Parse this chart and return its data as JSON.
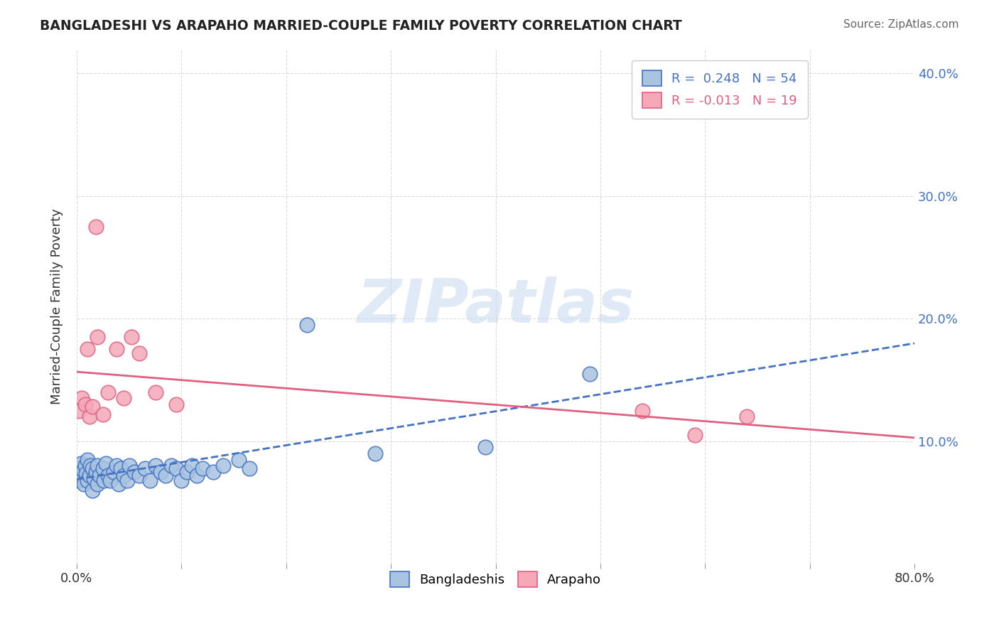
{
  "title": "BANGLADESHI VS ARAPAHO MARRIED-COUPLE FAMILY POVERTY CORRELATION CHART",
  "source": "Source: ZipAtlas.com",
  "ylabel": "Married-Couple Family Poverty",
  "xlim": [
    0.0,
    0.8
  ],
  "ylim": [
    0.0,
    0.42
  ],
  "blue_color": "#a8c4e0",
  "pink_color": "#f4a8b8",
  "blue_line_color": "#4472c4",
  "pink_line_color": "#e06080",
  "watermark": "ZIPatlas",
  "bangladeshi_x": [
    0.0,
    0.002,
    0.003,
    0.004,
    0.005,
    0.006,
    0.007,
    0.008,
    0.009,
    0.01,
    0.01,
    0.012,
    0.013,
    0.015,
    0.015,
    0.016,
    0.018,
    0.02,
    0.02,
    0.022,
    0.025,
    0.026,
    0.028,
    0.03,
    0.032,
    0.035,
    0.038,
    0.04,
    0.042,
    0.045,
    0.048,
    0.05,
    0.055,
    0.06,
    0.065,
    0.07,
    0.075,
    0.08,
    0.085,
    0.09,
    0.095,
    0.1,
    0.105,
    0.11,
    0.115,
    0.12,
    0.13,
    0.14,
    0.155,
    0.165,
    0.22,
    0.285,
    0.39,
    0.49
  ],
  "bangladeshi_y": [
    0.072,
    0.068,
    0.078,
    0.082,
    0.07,
    0.076,
    0.065,
    0.08,
    0.074,
    0.085,
    0.068,
    0.072,
    0.08,
    0.06,
    0.078,
    0.07,
    0.075,
    0.065,
    0.08,
    0.072,
    0.078,
    0.068,
    0.082,
    0.072,
    0.068,
    0.075,
    0.08,
    0.065,
    0.078,
    0.072,
    0.068,
    0.08,
    0.075,
    0.072,
    0.078,
    0.068,
    0.08,
    0.075,
    0.072,
    0.08,
    0.078,
    0.068,
    0.075,
    0.08,
    0.072,
    0.078,
    0.075,
    0.08,
    0.085,
    0.078,
    0.195,
    0.09,
    0.095,
    0.155
  ],
  "arapaho_x": [
    0.002,
    0.005,
    0.008,
    0.01,
    0.012,
    0.015,
    0.018,
    0.02,
    0.025,
    0.03,
    0.038,
    0.045,
    0.052,
    0.06,
    0.075,
    0.095,
    0.54,
    0.59,
    0.64
  ],
  "arapaho_y": [
    0.125,
    0.135,
    0.13,
    0.175,
    0.12,
    0.128,
    0.275,
    0.185,
    0.122,
    0.14,
    0.175,
    0.135,
    0.185,
    0.172,
    0.14,
    0.13,
    0.125,
    0.105,
    0.12
  ]
}
